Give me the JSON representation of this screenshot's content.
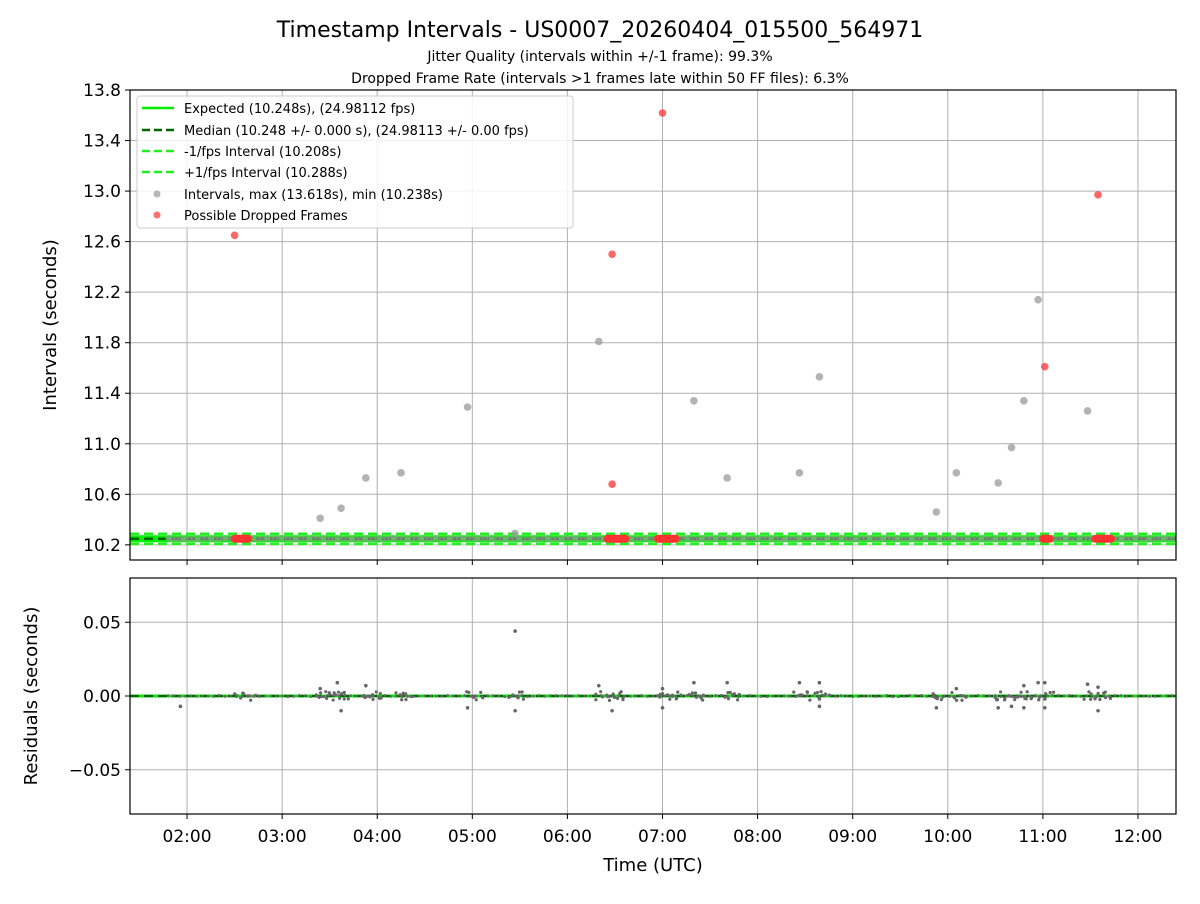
{
  "title": "Timestamp Intervals - US0007_20260404_015500_564971",
  "subtitle1": "Jitter Quality (intervals within +/-1 frame): 99.3%",
  "subtitle2": "Dropped Frame Rate (intervals >1 frames late within 50 FF files): 6.3%",
  "colors": {
    "expected": "#00ee00",
    "median": "#006400",
    "band": "#22ee22",
    "interval": "#999999",
    "dropped": "#ff3333",
    "residual": "#666666",
    "grid": "#b0b0b0"
  },
  "chart_data": [
    {
      "type": "scatter",
      "name": "intervals",
      "xlabel": "",
      "ylabel": "Intervals (seconds)",
      "xlim": [
        1.4,
        12.4
      ],
      "ylim": [
        10.08,
        13.8
      ],
      "yticks": [
        10.2,
        10.6,
        11.0,
        11.4,
        11.8,
        12.2,
        12.6,
        13.0,
        13.4,
        13.8
      ],
      "ytick_labels": [
        "10.2",
        "10.6",
        "11.0",
        "11.4",
        "11.8",
        "12.2",
        "12.6",
        "13.0",
        "13.4",
        "13.8"
      ],
      "grid": true,
      "legend_position": "top-left",
      "legend": [
        "Expected (10.248s), (24.98112 fps)",
        "Median (10.248 +/- 0.000 s), (24.98113 +/- 0.00 fps)",
        "-1/fps Interval (10.208s)",
        "+1/fps Interval (10.288s)",
        "Intervals, max (13.618s), min (10.238s)",
        "Possible Dropped Frames"
      ],
      "expected": 10.248,
      "median": 10.248,
      "lower": 10.208,
      "upper": 10.288,
      "intervals": [
        [
          3.4,
          10.41
        ],
        [
          3.62,
          10.49
        ],
        [
          3.88,
          10.73
        ],
        [
          4.25,
          10.77
        ],
        [
          4.95,
          11.29
        ],
        [
          5.45,
          10.29
        ],
        [
          6.33,
          11.81
        ],
        [
          7.33,
          11.34
        ],
        [
          7.68,
          10.73
        ],
        [
          8.44,
          10.77
        ],
        [
          8.65,
          11.53
        ],
        [
          9.88,
          10.46
        ],
        [
          10.09,
          10.77
        ],
        [
          10.53,
          10.69
        ],
        [
          10.67,
          10.97
        ],
        [
          10.8,
          11.34
        ],
        [
          10.95,
          12.14
        ],
        [
          11.47,
          11.26
        ]
      ],
      "dropped": [
        [
          2.5,
          12.65
        ],
        [
          6.47,
          12.5
        ],
        [
          6.47,
          10.68
        ],
        [
          7.0,
          13.618
        ],
        [
          11.02,
          11.61
        ],
        [
          11.58,
          12.97
        ]
      ],
      "dropped_clusters": [
        [
          2.5,
          2.65
        ],
        [
          6.42,
          6.62
        ],
        [
          6.95,
          7.15
        ],
        [
          11.0,
          11.08
        ],
        [
          11.55,
          11.72
        ]
      ]
    },
    {
      "type": "scatter",
      "name": "residuals",
      "xlabel": "Time (UTC)",
      "ylabel": "Residuals (seconds)",
      "xlim": [
        1.4,
        12.4
      ],
      "ylim": [
        -0.08,
        0.08
      ],
      "yticks": [
        -0.05,
        0.0,
        0.05
      ],
      "ytick_labels": [
        "−0.05",
        "0.00",
        "0.05"
      ],
      "xticks": [
        2,
        3,
        4,
        5,
        6,
        7,
        8,
        9,
        10,
        11,
        12
      ],
      "xtick_labels": [
        "02:00",
        "03:00",
        "04:00",
        "05:00",
        "06:00",
        "07:00",
        "08:00",
        "09:00",
        "10:00",
        "11:00",
        "12:00"
      ],
      "grid": true,
      "clusters": [
        [
          2.5,
          2.7
        ],
        [
          3.35,
          3.7
        ],
        [
          3.85,
          4.05
        ],
        [
          4.2,
          4.35
        ],
        [
          4.95,
          5.1
        ],
        [
          5.4,
          5.55
        ],
        [
          6.3,
          6.6
        ],
        [
          6.95,
          7.2
        ],
        [
          7.3,
          7.45
        ],
        [
          7.65,
          7.8
        ],
        [
          8.4,
          8.55
        ],
        [
          8.6,
          8.75
        ],
        [
          9.85,
          9.95
        ],
        [
          10.05,
          10.2
        ],
        [
          10.5,
          10.6
        ],
        [
          10.65,
          10.72
        ],
        [
          10.75,
          10.9
        ],
        [
          10.92,
          11.1
        ],
        [
          11.45,
          11.52
        ],
        [
          11.55,
          11.72
        ]
      ],
      "outliers": [
        [
          1.93,
          -0.007
        ],
        [
          5.45,
          0.044
        ],
        [
          5.45,
          -0.01
        ],
        [
          3.62,
          -0.01
        ],
        [
          3.58,
          0.009
        ],
        [
          3.4,
          0.005
        ],
        [
          3.88,
          0.007
        ],
        [
          4.95,
          -0.008
        ],
        [
          6.47,
          -0.01
        ],
        [
          6.33,
          0.007
        ],
        [
          7.0,
          -0.008
        ],
        [
          7.0,
          0.005
        ],
        [
          7.33,
          0.009
        ],
        [
          7.68,
          0.009
        ],
        [
          8.44,
          0.009
        ],
        [
          8.65,
          0.009
        ],
        [
          8.65,
          -0.007
        ],
        [
          9.88,
          -0.008
        ],
        [
          10.09,
          0.005
        ],
        [
          10.53,
          -0.008
        ],
        [
          10.67,
          -0.007
        ],
        [
          10.8,
          -0.008
        ],
        [
          10.8,
          0.007
        ],
        [
          10.95,
          0.009
        ],
        [
          11.02,
          0.009
        ],
        [
          11.02,
          -0.008
        ],
        [
          11.47,
          0.008
        ],
        [
          11.58,
          -0.01
        ],
        [
          11.58,
          0.006
        ]
      ]
    }
  ]
}
